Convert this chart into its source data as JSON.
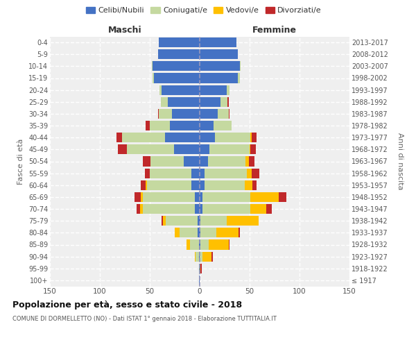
{
  "age_groups": [
    "100+",
    "95-99",
    "90-94",
    "85-89",
    "80-84",
    "75-79",
    "70-74",
    "65-69",
    "60-64",
    "55-59",
    "50-54",
    "45-49",
    "40-44",
    "35-39",
    "30-34",
    "25-29",
    "20-24",
    "15-19",
    "10-14",
    "5-9",
    "0-4"
  ],
  "birth_years": [
    "≤ 1917",
    "1918-1922",
    "1923-1927",
    "1928-1932",
    "1933-1937",
    "1938-1942",
    "1943-1947",
    "1948-1952",
    "1953-1957",
    "1958-1962",
    "1963-1967",
    "1968-1972",
    "1973-1977",
    "1978-1982",
    "1983-1987",
    "1988-1992",
    "1993-1997",
    "1998-2002",
    "2003-2007",
    "2008-2012",
    "2013-2017"
  ],
  "colors": {
    "celibe": "#4472C4",
    "coniugato": "#c5d9a0",
    "vedovo": "#ffc000",
    "divorziato": "#c0282a"
  },
  "maschi": {
    "celibe": [
      1,
      1,
      1,
      1,
      2,
      2,
      5,
      5,
      8,
      8,
      16,
      26,
      35,
      30,
      28,
      32,
      38,
      46,
      47,
      42,
      41
    ],
    "coniugato": [
      0,
      0,
      3,
      9,
      18,
      32,
      52,
      52,
      45,
      42,
      33,
      47,
      43,
      20,
      13,
      7,
      2,
      1,
      1,
      0,
      0
    ],
    "vedovo": [
      0,
      0,
      1,
      3,
      5,
      3,
      3,
      2,
      1,
      0,
      0,
      0,
      0,
      0,
      0,
      0,
      0,
      0,
      0,
      0,
      0
    ],
    "divorziato": [
      0,
      0,
      0,
      0,
      0,
      1,
      3,
      6,
      5,
      5,
      8,
      9,
      5,
      4,
      1,
      0,
      0,
      0,
      0,
      0,
      0
    ]
  },
  "femmine": {
    "nubile": [
      0,
      0,
      0,
      1,
      1,
      1,
      3,
      3,
      5,
      5,
      8,
      10,
      15,
      14,
      18,
      21,
      27,
      38,
      40,
      38,
      37
    ],
    "coniugata": [
      0,
      0,
      3,
      8,
      16,
      26,
      48,
      48,
      40,
      42,
      38,
      40,
      36,
      18,
      11,
      7,
      3,
      2,
      1,
      0,
      0
    ],
    "vedova": [
      0,
      1,
      9,
      20,
      22,
      32,
      16,
      28,
      8,
      5,
      3,
      1,
      1,
      0,
      0,
      0,
      0,
      0,
      0,
      0,
      0
    ],
    "divorziata": [
      0,
      1,
      1,
      1,
      1,
      0,
      5,
      8,
      4,
      8,
      6,
      5,
      5,
      0,
      1,
      1,
      0,
      0,
      0,
      0,
      0
    ]
  },
  "xlim": 150,
  "title": "Popolazione per età, sesso e stato civile - 2018",
  "subtitle": "COMUNE DI DORMELLETTO (NO) - Dati ISTAT 1° gennaio 2018 - Elaborazione TUTTITALIA.IT",
  "ylabel_left": "Fasce di età",
  "ylabel_right": "Anni di nascita",
  "xlabel_maschi": "Maschi",
  "xlabel_femmine": "Femmine",
  "legend_labels": [
    "Celibi/Nubili",
    "Coniugati/e",
    "Vedovi/e",
    "Divorziati/e"
  ],
  "bg_color": "#efefef"
}
